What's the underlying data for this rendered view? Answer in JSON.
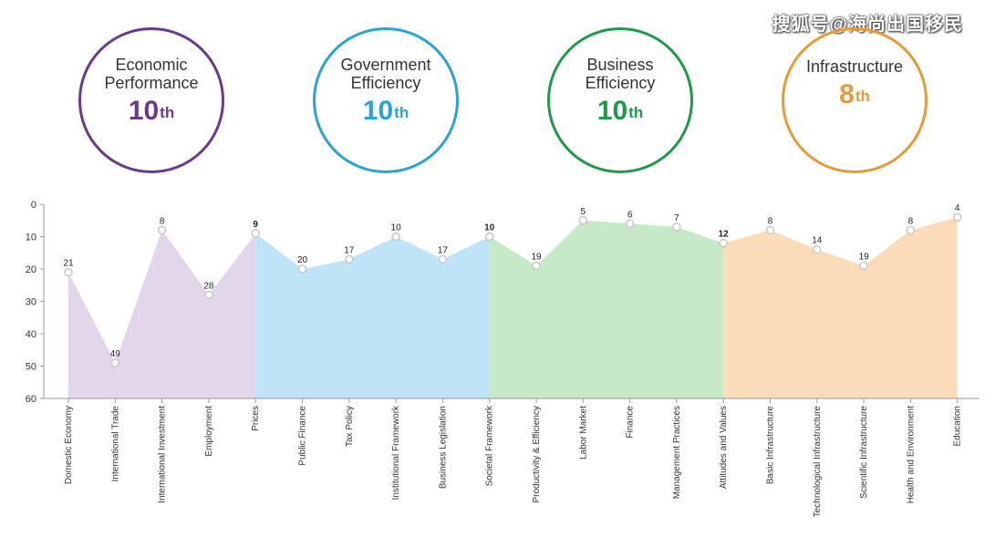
{
  "watermark": "搜狐号@海尚出国移民",
  "factors": [
    {
      "label": [
        "Economic",
        "Performance"
      ],
      "rank": "10",
      "suffix": "th",
      "color": "#6b3a8e"
    },
    {
      "label": [
        "Government",
        "Efficiency"
      ],
      "rank": "10",
      "suffix": "th",
      "color": "#2aa3d6"
    },
    {
      "label": [
        "Business",
        "Efficiency"
      ],
      "rank": "10",
      "suffix": "th",
      "color": "#1f9a4a"
    },
    {
      "label": [
        "Infrastructure"
      ],
      "rank": "8",
      "suffix": "th",
      "color": "#e89a35"
    }
  ],
  "chart_data": {
    "type": "area",
    "title": "",
    "xlabel": "",
    "ylabel": "",
    "ylim": [
      0,
      60
    ],
    "y_inverted": true,
    "yticks": [
      0,
      10,
      20,
      30,
      40,
      50,
      60
    ],
    "grid": false,
    "categories": [
      "Domestic Economy",
      "International Trade",
      "International Investment",
      "Employment",
      "Prices",
      "Public Finance",
      "Tax Policy",
      "Institutional Framework",
      "Business Legislation",
      "Societal Framework",
      "Productivity & Efficiency",
      "Labor Market",
      "Finance",
      "Management Practices",
      "Attitudes and Values",
      "Basic Infrastructure",
      "Technological Infrastructure",
      "Scientific Infrastructure",
      "Health and Environment",
      "Education"
    ],
    "values": [
      21,
      49,
      8,
      28,
      9,
      20,
      17,
      10,
      17,
      10,
      19,
      5,
      6,
      7,
      12,
      8,
      14,
      19,
      8,
      4
    ],
    "groups": [
      {
        "name": "Economic Performance",
        "start": 0,
        "end": 4,
        "color": "#e3d6ea"
      },
      {
        "name": "Government Efficiency",
        "start": 4,
        "end": 9,
        "color": "#bfe3f7"
      },
      {
        "name": "Business Efficiency",
        "start": 9,
        "end": 14,
        "color": "#c6e9c7"
      },
      {
        "name": "Infrastructure",
        "start": 14,
        "end": 19,
        "color": "#fbdcb8"
      }
    ]
  }
}
